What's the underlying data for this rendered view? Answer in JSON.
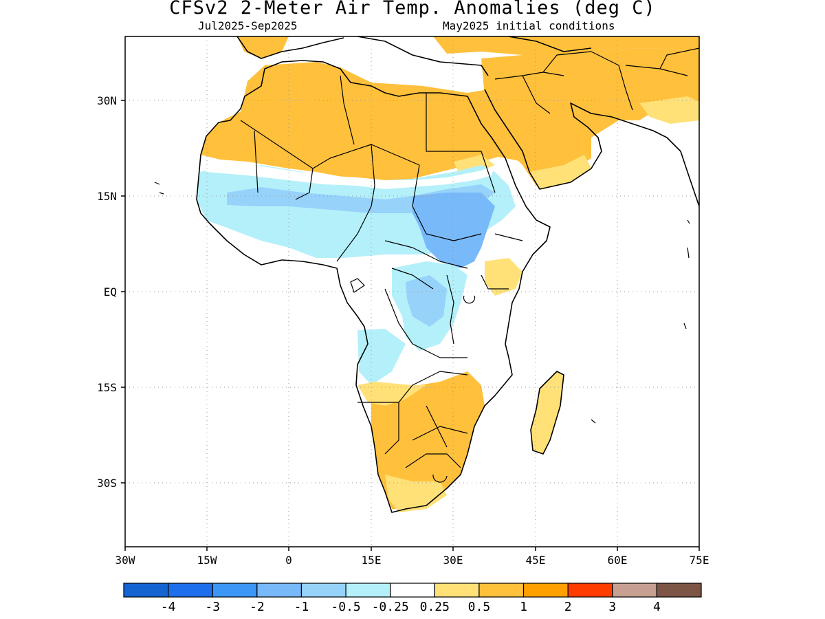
{
  "header": {
    "title": "CFSv2 2-Meter Air Temp. Anomalies (deg C)",
    "period": "Jul2025-Sep2025",
    "initial_conditions": "May2025 initial conditions"
  },
  "map": {
    "region": "Africa",
    "lon_range": [
      -30,
      75
    ],
    "lat_range": [
      -42,
      41
    ],
    "grid": "dotted",
    "x_tick_labels": [
      "30W",
      "15W",
      "0",
      "15E",
      "30E",
      "45E",
      "60E",
      "75E"
    ],
    "y_tick_labels": [
      "30N",
      "15N",
      "EQ",
      "15S",
      "30S"
    ],
    "anomaly_regions": [
      {
        "area": "Sahara / North Africa",
        "category": "0.5 to 1"
      },
      {
        "area": "Arabian Peninsula / Middle East",
        "category": "0.5 to 1"
      },
      {
        "area": "Sahel belt",
        "category": "-0.5 to -0.25"
      },
      {
        "area": "Sudan / South Sudan / Central Africa",
        "category": "-1 to -0.5"
      },
      {
        "area": "Southern Africa",
        "category": "0.5 to 1"
      },
      {
        "area": "Madagascar",
        "category": "0.25 to 0.5"
      },
      {
        "area": "Horn of Africa",
        "category": "-0.25 to 0.25"
      }
    ]
  },
  "colorbar": {
    "colors": [
      "#1464d2",
      "#1e6eeb",
      "#3c96f5",
      "#78b9fa",
      "#96d2fa",
      "#b4f0fa",
      "#ffffff",
      "#ffe178",
      "#ffc03c",
      "#ffa000",
      "#ff3c00",
      "#c8a092",
      "#7d5546"
    ],
    "labels": [
      "-4",
      "-3",
      "-2",
      "-1",
      "-0.5",
      "-0.25",
      "0.25",
      "0.5",
      "1",
      "2",
      "3",
      "4"
    ]
  }
}
